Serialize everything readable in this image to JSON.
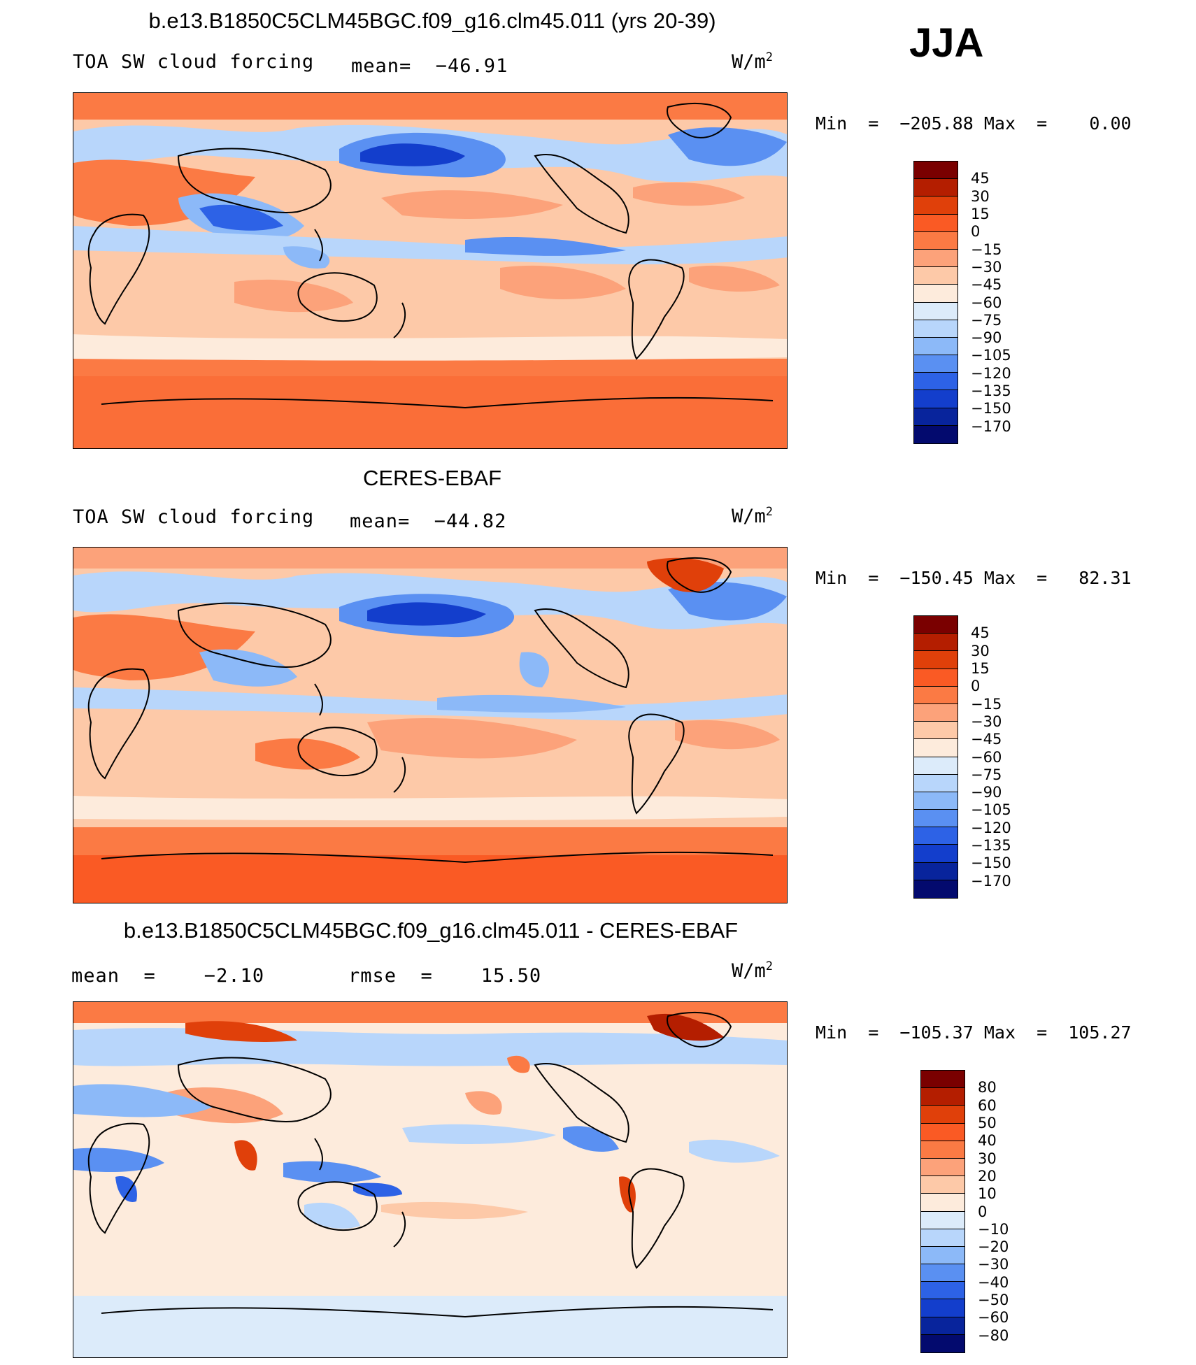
{
  "season": "JJA",
  "panels": [
    {
      "title": "b.e13.B1850C5CLM45BGC.f09_g16.clm45.011 (yrs 20-39)",
      "left_label": "TOA SW cloud forcing",
      "center_label": "mean=  −46.91",
      "units_base": "W/m",
      "units_exp": "2",
      "min_text": "Min  =  −205.88",
      "max_text": "Max  =    0.00",
      "colorbar_levels": [
        "45",
        "30",
        "15",
        "0",
        "−15",
        "−30",
        "−45",
        "−60",
        "−75",
        "−90",
        "−105",
        "−120",
        "−135",
        "−150",
        "−170"
      ]
    },
    {
      "title": "CERES-EBAF",
      "left_label": "TOA SW cloud forcing",
      "center_label": "mean=  −44.82",
      "units_base": "W/m",
      "units_exp": "2",
      "min_text": "Min  =  −150.45",
      "max_text": "Max  =   82.31",
      "colorbar_levels": [
        "45",
        "30",
        "15",
        "0",
        "−15",
        "−30",
        "−45",
        "−60",
        "−75",
        "−90",
        "−105",
        "−120",
        "−135",
        "−150",
        "−170"
      ]
    },
    {
      "title": "b.e13.B1850C5CLM45BGC.f09_g16.clm45.011 - CERES-EBAF",
      "left_label": "mean  =    −2.10",
      "center_label": "rmse  =    15.50",
      "units_base": "W/m",
      "units_exp": "2",
      "min_text": "Min  =  −105.37",
      "max_text": "Max  =  105.27",
      "colorbar_levels": [
        "80",
        "60",
        "50",
        "40",
        "30",
        "20",
        "10",
        "0",
        "−10",
        "−20",
        "−30",
        "−40",
        "−50",
        "−60",
        "−80"
      ]
    }
  ],
  "colors": {
    "abs_scale": [
      "#7a0000",
      "#b41e00",
      "#e0400a",
      "#fa5a24",
      "#fb7a44",
      "#fca27a",
      "#fdc9a8",
      "#fdebdc",
      "#dcebfa",
      "#b8d6fb",
      "#8cb9f8",
      "#5a90f2",
      "#2d62e6",
      "#133ecc",
      "#08249c",
      "#030a6e"
    ],
    "diff_scale": [
      "#7a0000",
      "#b41e00",
      "#e0400a",
      "#fa5a24",
      "#fb7a44",
      "#fca27a",
      "#fdc9a8",
      "#fdebdc",
      "#dcebfa",
      "#b8d6fb",
      "#8cb9f8",
      "#5a90f2",
      "#2d62e6",
      "#133ecc",
      "#08249c",
      "#030a6e"
    ],
    "coast": "#000000"
  }
}
